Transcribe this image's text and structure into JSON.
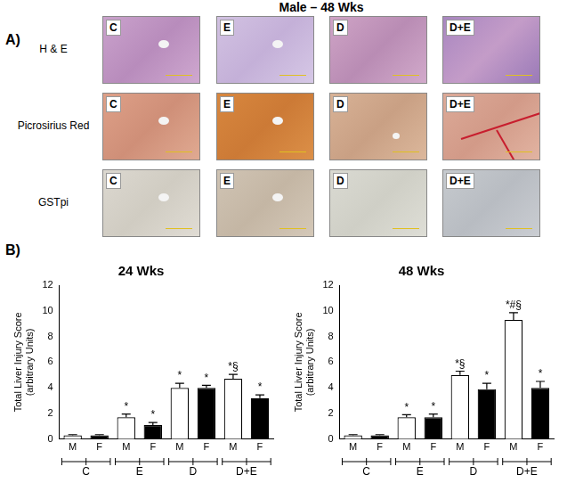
{
  "panel_a": {
    "label": "A)",
    "title": "Male – 48 Wks",
    "rows": [
      "H & E",
      "Picrosirius Red",
      "GSTpi"
    ],
    "columns": [
      "C",
      "E",
      "D",
      "D+E"
    ]
  },
  "panel_b": {
    "label": "B)"
  },
  "chart_data": [
    {
      "type": "bar",
      "title": "24 Wks",
      "y_label": [
        "Total Liver Injury Score",
        "(arbitrary Units)"
      ],
      "categories": [
        "M",
        "F",
        "M",
        "F",
        "M",
        "F",
        "M",
        "F"
      ],
      "groups": [
        "C",
        "E",
        "D",
        "D+E"
      ],
      "values": [
        0.3,
        0.3,
        1.7,
        1.1,
        4.0,
        4.0,
        4.7,
        3.2
      ],
      "errors": [
        0.05,
        0.05,
        0.25,
        0.2,
        0.35,
        0.2,
        0.35,
        0.25
      ],
      "annotations": [
        null,
        null,
        "*",
        "*",
        "*",
        "*",
        "*§",
        "*"
      ],
      "colors": [
        "#ffffff",
        "#000000",
        "#ffffff",
        "#000000",
        "#ffffff",
        "#000000",
        "#ffffff",
        "#000000"
      ],
      "ylim": [
        0,
        12
      ],
      "yticks": [
        0,
        2,
        4,
        6,
        8,
        10,
        12
      ],
      "grid": false
    },
    {
      "type": "bar",
      "title": "48 Wks",
      "y_label": [
        "Total Liver Injury Score",
        "(arbitrary Units)"
      ],
      "categories": [
        "M",
        "F",
        "M",
        "F",
        "M",
        "F",
        "M",
        "F"
      ],
      "groups": [
        "C",
        "E",
        "D",
        "D+E"
      ],
      "values": [
        0.3,
        0.3,
        1.7,
        1.7,
        5.0,
        3.9,
        9.3,
        4.0
      ],
      "errors": [
        0.05,
        0.05,
        0.2,
        0.25,
        0.3,
        0.45,
        0.55,
        0.5
      ],
      "annotations": [
        null,
        null,
        "*",
        "*",
        "*§",
        "*",
        "*#§",
        "*"
      ],
      "colors": [
        "#ffffff",
        "#000000",
        "#ffffff",
        "#000000",
        "#ffffff",
        "#000000",
        "#ffffff",
        "#000000"
      ],
      "ylim": [
        0,
        12
      ],
      "yticks": [
        0,
        2,
        4,
        6,
        8,
        10,
        12
      ],
      "grid": false
    }
  ]
}
